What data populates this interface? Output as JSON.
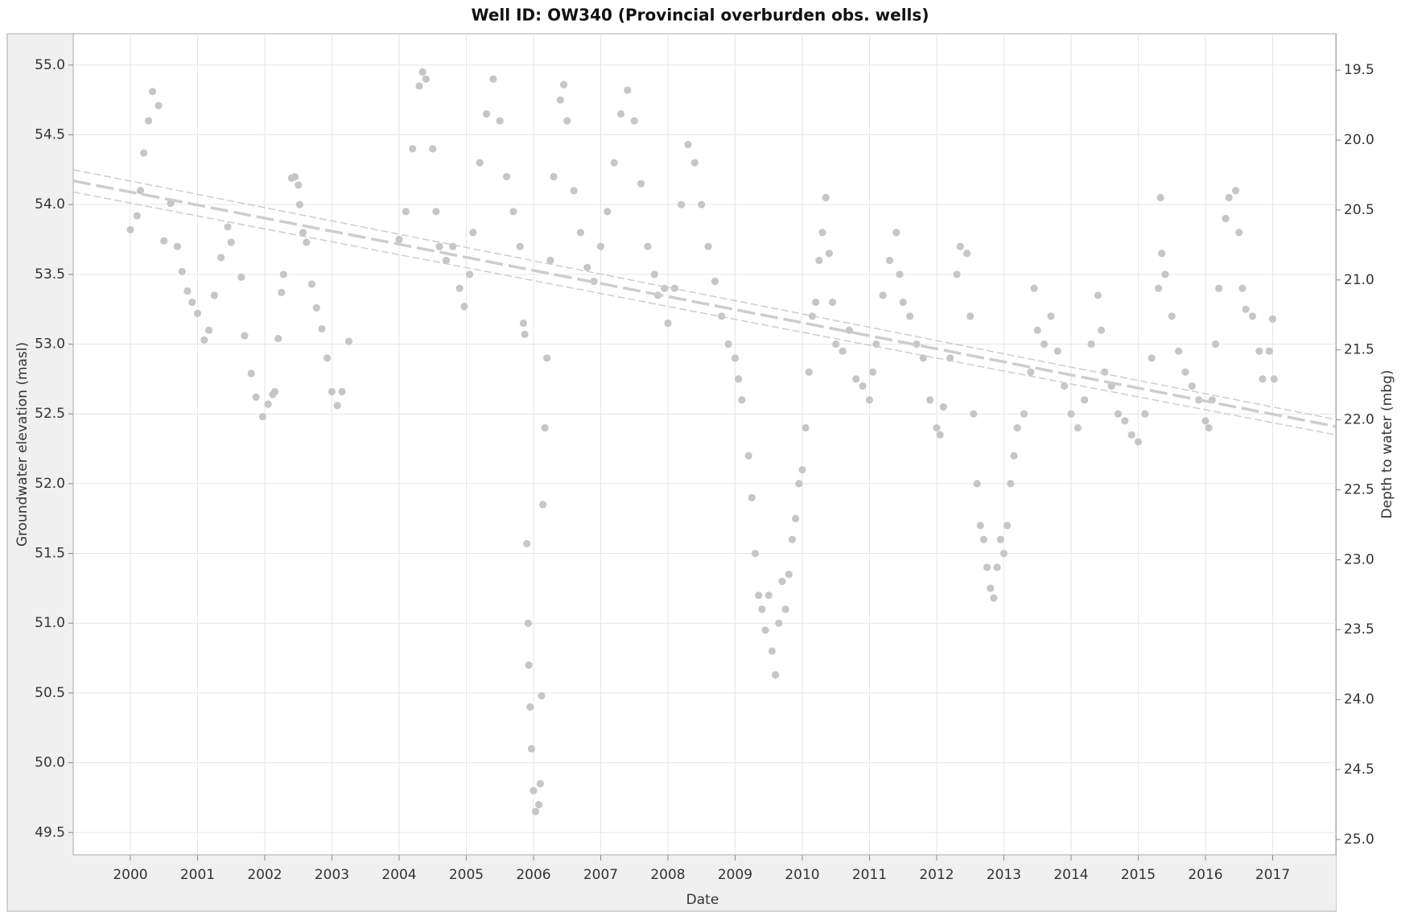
{
  "chart_data": {
    "type": "scatter",
    "title": "Well ID: OW340 (Provincial overburden obs. wells)",
    "x_label": "Date",
    "y_label": "Groundwater elevation (masl)",
    "y2_label": "Depth to water (mbg)",
    "xlim": [
      1999.15,
      2017.94
    ],
    "xticks": [
      2000,
      2001,
      2002,
      2003,
      2004,
      2005,
      2006,
      2007,
      2008,
      2009,
      2010,
      2011,
      2012,
      2013,
      2014,
      2015,
      2016,
      2017
    ],
    "ylim": [
      49.34,
      55.224
    ],
    "yticks": [
      {
        "value": 49.5,
        "label": "49.5"
      },
      {
        "value": 50,
        "label": "50.0"
      },
      {
        "value": 50.5,
        "label": "50.5"
      },
      {
        "value": 51,
        "label": "51.0"
      },
      {
        "value": 51.5,
        "label": "51.5"
      },
      {
        "value": 52,
        "label": "52.0"
      },
      {
        "value": 52.5,
        "label": "52.5"
      },
      {
        "value": 53,
        "label": "53.0"
      },
      {
        "value": 53.5,
        "label": "53.5"
      },
      {
        "value": 54,
        "label": "54.0"
      },
      {
        "value": 54.5,
        "label": "54.5"
      },
      {
        "value": 55,
        "label": "55.0"
      }
    ],
    "y2lim": [
      25.11,
      19.24
    ],
    "y2ticks": [
      19.5,
      {
        "value": 20,
        "label": "20.0"
      },
      20.5,
      {
        "value": 21,
        "label": "21.0"
      },
      21.5,
      {
        "value": 22,
        "label": "22.0"
      },
      22.5,
      {
        "value": 23,
        "label": "23.0"
      },
      23.5,
      {
        "value": 24,
        "label": "24.0"
      },
      24.5,
      {
        "value": 25,
        "label": "25.0"
      }
    ],
    "grid": true,
    "series": [
      {
        "mode": "markers",
        "color": "#c6c6c6",
        "x": [
          2000.0,
          2000.1,
          2000.15,
          2000.2,
          2000.27,
          2000.33,
          2000.42,
          2000.5,
          2000.6,
          2000.7,
          2000.77,
          2000.85,
          2000.92,
          2001.0,
          2001.1,
          2001.17,
          2001.25,
          2001.35,
          2001.45,
          2001.5,
          2001.65,
          2001.7,
          2001.8,
          2001.87,
          2001.97,
          2002.05,
          2002.12,
          2002.15,
          2002.2,
          2002.25,
          2002.28,
          2002.4,
          2002.45,
          2002.5,
          2002.52,
          2002.57,
          2002.62,
          2002.7,
          2002.77,
          2002.85,
          2002.93,
          2003.0,
          2003.08,
          2003.15,
          2003.25,
          2004.0,
          2004.1,
          2004.2,
          2004.3,
          2004.35,
          2004.4,
          2004.5,
          2004.55,
          2004.6,
          2004.7,
          2004.8,
          2004.9,
          2004.97,
          2005.05,
          2005.1,
          2005.2,
          2005.3,
          2005.4,
          2005.5,
          2005.6,
          2005.7,
          2005.8,
          2005.85,
          2005.87,
          2005.9,
          2005.92,
          2005.93,
          2005.95,
          2005.97,
          2006.0,
          2006.03,
          2006.08,
          2006.1,
          2006.12,
          2006.14,
          2006.17,
          2006.2,
          2006.25,
          2006.3,
          2006.4,
          2006.45,
          2006.5,
          2006.6,
          2006.7,
          2006.8,
          2006.9,
          2007.0,
          2007.1,
          2007.2,
          2007.3,
          2007.4,
          2007.5,
          2007.6,
          2007.7,
          2007.8,
          2007.85,
          2007.95,
          2008.0,
          2008.1,
          2008.2,
          2008.3,
          2008.4,
          2008.5,
          2008.6,
          2008.7,
          2008.8,
          2008.9,
          2009.0,
          2009.05,
          2009.1,
          2009.2,
          2009.25,
          2009.3,
          2009.35,
          2009.4,
          2009.45,
          2009.5,
          2009.55,
          2009.6,
          2009.65,
          2009.7,
          2009.75,
          2009.8,
          2009.85,
          2009.9,
          2009.95,
          2010.0,
          2010.05,
          2010.1,
          2010.15,
          2010.2,
          2010.25,
          2010.3,
          2010.35,
          2010.4,
          2010.45,
          2010.5,
          2010.6,
          2010.7,
          2010.8,
          2010.9,
          2011.0,
          2011.05,
          2011.1,
          2011.2,
          2011.3,
          2011.4,
          2011.45,
          2011.5,
          2011.6,
          2011.7,
          2011.8,
          2011.9,
          2012.0,
          2012.05,
          2012.1,
          2012.2,
          2012.3,
          2012.35,
          2012.45,
          2012.5,
          2012.55,
          2012.6,
          2012.65,
          2012.7,
          2012.75,
          2012.8,
          2012.85,
          2012.9,
          2012.95,
          2013.0,
          2013.05,
          2013.1,
          2013.15,
          2013.2,
          2013.3,
          2013.4,
          2013.45,
          2013.5,
          2013.6,
          2013.7,
          2013.8,
          2013.9,
          2014.0,
          2014.1,
          2014.2,
          2014.3,
          2014.4,
          2014.45,
          2014.5,
          2014.6,
          2014.7,
          2014.8,
          2014.9,
          2015.0,
          2015.1,
          2015.2,
          2015.3,
          2015.33,
          2015.35,
          2015.4,
          2015.5,
          2015.6,
          2015.7,
          2015.8,
          2015.9,
          2016.0,
          2016.05,
          2016.1,
          2016.15,
          2016.2,
          2016.3,
          2016.35,
          2016.45,
          2016.5,
          2016.55,
          2016.6,
          2016.7,
          2016.8,
          2016.85,
          2016.95,
          2017.0,
          2017.02
        ],
        "values": [
          53.82,
          53.92,
          54.1,
          54.37,
          54.6,
          54.81,
          54.71,
          53.74,
          54.01,
          53.7,
          53.52,
          53.38,
          53.3,
          53.22,
          53.03,
          53.1,
          53.35,
          53.62,
          53.84,
          53.73,
          53.48,
          53.06,
          52.79,
          52.62,
          52.48,
          52.57,
          52.64,
          52.66,
          53.04,
          53.37,
          53.5,
          54.19,
          54.2,
          54.14,
          54.0,
          53.8,
          53.73,
          53.43,
          53.26,
          53.11,
          52.9,
          52.66,
          52.56,
          52.66,
          53.02,
          53.75,
          53.95,
          54.4,
          54.85,
          54.95,
          54.9,
          54.4,
          53.95,
          53.7,
          53.6,
          53.7,
          53.4,
          53.27,
          53.5,
          53.8,
          54.3,
          54.65,
          54.9,
          54.6,
          54.2,
          53.95,
          53.7,
          53.15,
          53.07,
          51.57,
          51.0,
          50.7,
          50.4,
          50.1,
          49.8,
          49.65,
          49.7,
          49.85,
          50.48,
          51.85,
          52.4,
          52.9,
          53.6,
          54.2,
          54.75,
          54.86,
          54.6,
          54.1,
          53.8,
          53.55,
          53.45,
          53.7,
          53.95,
          54.3,
          54.65,
          54.82,
          54.6,
          54.15,
          53.7,
          53.5,
          53.35,
          53.4,
          53.15,
          53.4,
          54.0,
          54.43,
          54.3,
          54.0,
          53.7,
          53.45,
          53.2,
          53.0,
          52.9,
          52.75,
          52.6,
          52.2,
          51.9,
          51.5,
          51.2,
          51.1,
          50.95,
          51.2,
          50.8,
          50.63,
          51.0,
          51.3,
          51.1,
          51.35,
          51.6,
          51.75,
          52.0,
          52.1,
          52.4,
          52.8,
          53.2,
          53.3,
          53.6,
          53.8,
          54.05,
          53.65,
          53.3,
          53.0,
          52.95,
          53.1,
          52.75,
          52.7,
          52.6,
          52.8,
          53.0,
          53.35,
          53.6,
          53.8,
          53.5,
          53.3,
          53.2,
          53.0,
          52.9,
          52.6,
          52.4,
          52.35,
          52.55,
          52.9,
          53.5,
          53.7,
          53.65,
          53.2,
          52.5,
          52.0,
          51.7,
          51.6,
          51.4,
          51.25,
          51.18,
          51.4,
          51.6,
          51.5,
          51.7,
          52.0,
          52.2,
          52.4,
          52.5,
          52.8,
          53.4,
          53.1,
          53.0,
          53.2,
          52.95,
          52.7,
          52.5,
          52.4,
          52.6,
          53.0,
          53.35,
          53.1,
          52.8,
          52.7,
          52.5,
          52.45,
          52.35,
          52.3,
          52.5,
          52.9,
          53.4,
          54.05,
          53.65,
          53.5,
          53.2,
          52.95,
          52.8,
          52.7,
          52.6,
          52.45,
          52.4,
          52.6,
          53.0,
          53.4,
          53.9,
          54.05,
          54.1,
          53.8,
          53.4,
          53.25,
          53.2,
          52.95,
          52.75,
          52.95,
          53.18,
          52.75
        ]
      },
      {
        "mode": "lines",
        "line_style": "light-dash",
        "color": "#cdcdcd",
        "x": [
          1999.15,
          2017.94
        ],
        "values": [
          54.25,
          52.46
        ]
      },
      {
        "mode": "lines",
        "line_style": "heavy-dash",
        "color": "#cdcdcd",
        "x": [
          1999.15,
          2017.94
        ],
        "values": [
          54.17,
          52.41
        ]
      },
      {
        "mode": "lines",
        "line_style": "light-dash",
        "color": "#cdcdcd",
        "x": [
          1999.15,
          2017.94
        ],
        "values": [
          54.09,
          52.35
        ]
      }
    ]
  }
}
